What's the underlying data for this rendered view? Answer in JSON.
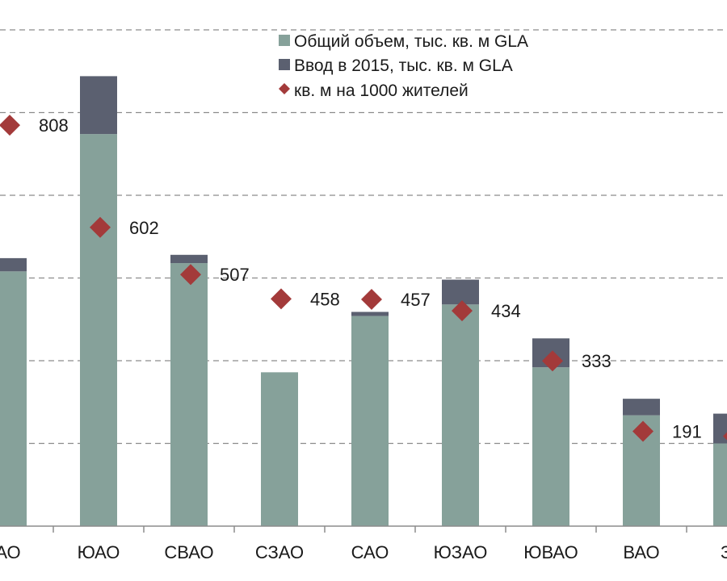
{
  "chart_data": {
    "type": "bar",
    "stacked": true,
    "categories": [
      "ЦАО",
      "ЮАО",
      "СВАО",
      "СЗАО",
      "САО",
      "ЮЗАО",
      "ЮВАО",
      "ВАО",
      "ЗАО"
    ],
    "category_display": [
      "АО",
      "ЮАО",
      "СВАО",
      "СЗАО",
      "САО",
      "ЮЗАО",
      "ЮВАО",
      "ВАО",
      "ЗА"
    ],
    "series": [
      {
        "name": "Общий объем, тыс. кв. м GLA",
        "kind": "bar",
        "color": "#86a19a",
        "values": [
          1540,
          2370,
          1590,
          930,
          1270,
          1340,
          960,
          670,
          500
        ]
      },
      {
        "name": "Ввод в 2015, тыс. кв. м GLA",
        "kind": "bar",
        "color": "#5b6070",
        "values": [
          80,
          350,
          50,
          0,
          25,
          150,
          175,
          100,
          180
        ]
      },
      {
        "name": "кв. м на 1000 жителей",
        "kind": "marker",
        "color": "#a33a3a",
        "values": [
          808,
          602,
          507,
          458,
          457,
          434,
          333,
          191,
          null
        ],
        "labels": [
          "808",
          "602",
          "507",
          "458",
          "457",
          "434",
          "333",
          "191",
          ""
        ]
      }
    ],
    "ylim": [
      0,
      3000
    ],
    "secondary_ylim": [
      0,
      1000
    ],
    "grid": true,
    "legend": "top-right"
  }
}
